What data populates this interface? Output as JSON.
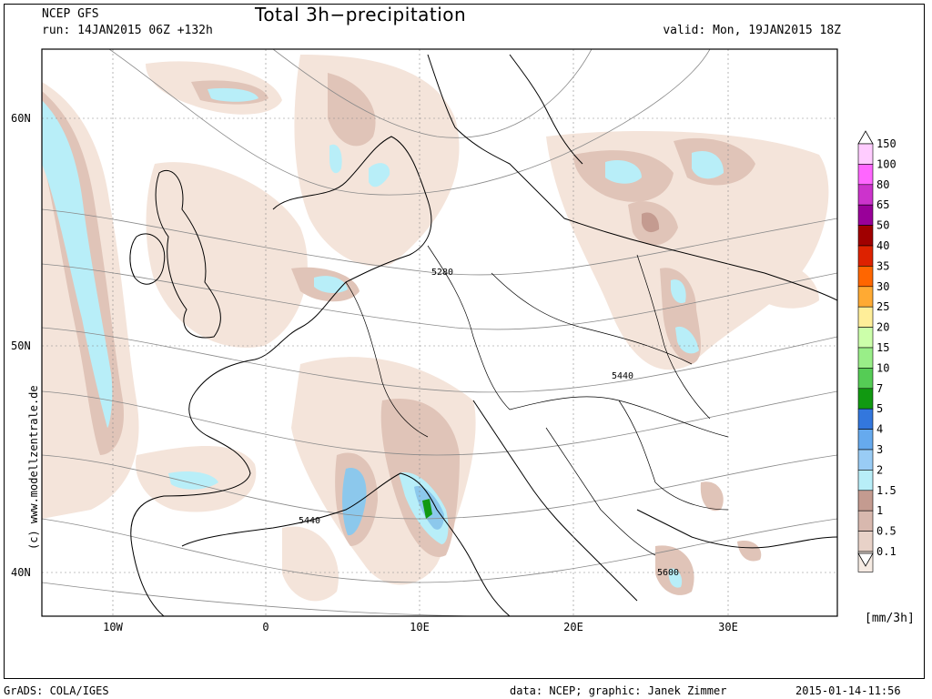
{
  "header": {
    "model": "NCEP GFS",
    "run": "run: 14JAN2015 06Z +132h",
    "title": "Total 3h−precipitation",
    "valid": "valid: Mon, 19JAN2015 18Z"
  },
  "footer": {
    "software": "GrADS: COLA/IGES",
    "credit": "data: NCEP; graphic: Janek Zimmer",
    "timestamp": "2015-01-14-11:56"
  },
  "copyright": "(c) www.modellzentrale.de",
  "axes": {
    "lat_labels": [
      "60N",
      "50N",
      "40N"
    ],
    "lon_labels": [
      "10W",
      "0",
      "10E",
      "20E",
      "30E"
    ]
  },
  "contour_labels": [
    "5280",
    "5440",
    "5440",
    "5600"
  ],
  "legend": {
    "units": "[mm/3h]",
    "levels": [
      "150",
      "100",
      "80",
      "65",
      "50",
      "40",
      "35",
      "30",
      "25",
      "20",
      "15",
      "10",
      "7",
      "5",
      "4",
      "3",
      "2",
      "1.5",
      "1",
      "0.5",
      "0.1"
    ],
    "colors": [
      "#ffccff",
      "#ff66ff",
      "#cc33cc",
      "#990099",
      "#a00000",
      "#dd2200",
      "#ff6600",
      "#ffaa33",
      "#ffee99",
      "#ccffaa",
      "#99ee88",
      "#55cc55",
      "#119911",
      "#3377dd",
      "#66aaee",
      "#99ccf5",
      "#b8eef8",
      "#c49b90",
      "#d8b8ae",
      "#e8d2c8",
      "#f6ebe3"
    ]
  },
  "colors": {
    "light": "#f4e4da",
    "mid": "#e0c4b8",
    "dark": "#c49b90",
    "cyan": "#b8eef8",
    "blue": "#8cc8ec",
    "green": "#119911"
  }
}
